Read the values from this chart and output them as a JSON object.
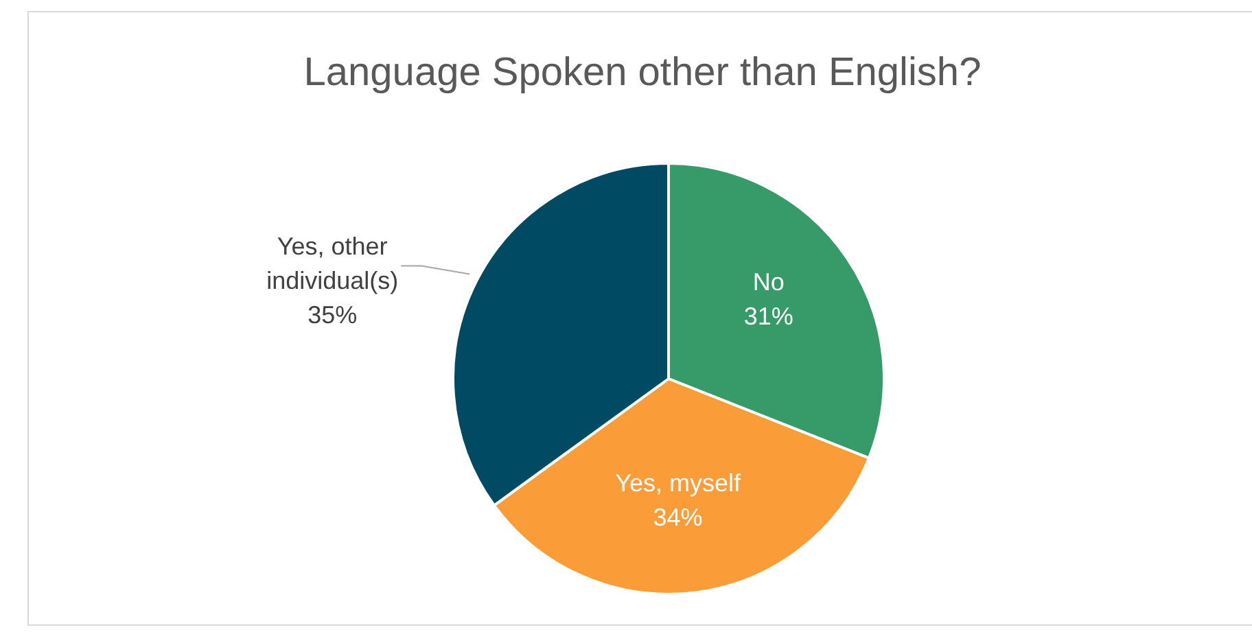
{
  "chart_data": {
    "type": "pie",
    "title": "Language Spoken other than English?",
    "categories": [
      "No",
      "Yes, myself",
      "Yes, other individual(s)"
    ],
    "values": [
      31,
      34,
      35
    ],
    "value_labels": [
      "31%",
      "34%",
      "35%"
    ],
    "colors": [
      "#379b69",
      "#fa9c37",
      "#004b63"
    ],
    "legend": false
  }
}
